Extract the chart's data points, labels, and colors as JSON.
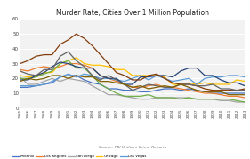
{
  "title": "Murder Rate, Cities Over 1 Million Population",
  "source": "Source: FBI Uniform Crime Reports",
  "years": [
    1985,
    1986,
    1987,
    1988,
    1989,
    1990,
    1991,
    1992,
    1993,
    1994,
    1995,
    1996,
    1997,
    1998,
    1999,
    2000,
    2001,
    2002,
    2003,
    2004,
    2005,
    2006,
    2007,
    2008,
    2009,
    2010,
    2011,
    2012,
    2013
  ],
  "series": {
    "Phoenix": [
      14,
      14,
      15,
      16,
      17,
      21,
      22,
      22,
      19,
      17,
      16,
      13,
      13,
      12,
      12,
      11,
      11,
      12,
      13,
      13,
      12,
      13,
      12,
      11,
      10,
      10,
      10,
      10,
      10
    ],
    "Los Angeles": [
      26,
      25,
      27,
      28,
      27,
      28,
      30,
      30,
      29,
      27,
      22,
      20,
      18,
      16,
      14,
      14,
      15,
      16,
      14,
      14,
      13,
      12,
      11,
      10,
      10,
      9,
      8,
      8,
      7
    ],
    "San Diego": [
      21,
      16,
      16,
      18,
      20,
      18,
      20,
      19,
      18,
      15,
      12,
      9,
      9,
      8,
      7,
      6,
      6,
      7,
      7,
      7,
      7,
      7,
      6,
      6,
      6,
      5,
      5,
      4,
      4
    ],
    "Chicago": [
      22,
      21,
      21,
      24,
      24,
      30,
      32,
      34,
      30,
      29,
      29,
      28,
      26,
      26,
      22,
      22,
      22,
      22,
      21,
      16,
      16,
      17,
      16,
      17,
      16,
      16,
      16,
      19,
      18
    ],
    "Las Vegas": [
      15,
      15,
      15,
      16,
      18,
      21,
      23,
      21,
      23,
      22,
      20,
      20,
      19,
      18,
      20,
      22,
      19,
      22,
      20,
      18,
      19,
      20,
      16,
      20,
      21,
      21,
      22,
      22,
      21
    ],
    "New York": [
      20,
      20,
      21,
      23,
      25,
      30,
      32,
      27,
      27,
      22,
      16,
      13,
      10,
      8,
      8,
      8,
      9,
      7,
      7,
      7,
      6,
      7,
      6,
      6,
      6,
      6,
      6,
      5,
      4
    ],
    "Philadelphia": [
      19,
      19,
      22,
      24,
      28,
      31,
      30,
      28,
      27,
      27,
      22,
      20,
      20,
      16,
      16,
      21,
      21,
      22,
      22,
      21,
      25,
      27,
      27,
      22,
      22,
      19,
      17,
      17,
      15
    ],
    "Dallas": [
      30,
      32,
      35,
      36,
      36,
      43,
      46,
      50,
      47,
      42,
      36,
      30,
      24,
      22,
      19,
      19,
      22,
      23,
      20,
      17,
      16,
      16,
      15,
      13,
      12,
      12,
      12,
      12,
      13
    ],
    "Houston": [
      25,
      23,
      22,
      26,
      26,
      35,
      38,
      32,
      28,
      22,
      19,
      22,
      19,
      16,
      12,
      14,
      16,
      15,
      14,
      14,
      16,
      16,
      15,
      15,
      16,
      13,
      13,
      12,
      12
    ],
    "San Antonio": [
      18,
      20,
      19,
      20,
      22,
      22,
      20,
      22,
      21,
      21,
      18,
      18,
      17,
      16,
      14,
      15,
      13,
      14,
      15,
      14,
      16,
      14,
      12,
      11,
      11,
      11,
      9,
      9,
      9
    ]
  },
  "colors": {
    "Phoenix": "#4472c4",
    "Los Angeles": "#ed7d31",
    "San Diego": "#a5a5a5",
    "Chicago": "#ffc000",
    "Las Vegas": "#5b9bd5",
    "New York": "#70ad47",
    "Philadelphia": "#264478",
    "Dallas": "#843c0c",
    "Houston": "#636363",
    "San Antonio": "#7f6000"
  },
  "line_styles": {
    "Phoenix": "-",
    "Los Angeles": "-",
    "San Diego": "-",
    "Chicago": "-",
    "Las Vegas": "-",
    "New York": "-",
    "Philadelphia": "-",
    "Dallas": "-",
    "Houston": "-",
    "San Antonio": "-"
  },
  "ylim": [
    0,
    60
  ],
  "yticks": [
    0,
    10,
    20,
    30,
    40,
    50,
    60
  ],
  "bg_color": "#f2f2f2",
  "grid_color": "#ffffff",
  "fig_bg": "#ffffff"
}
